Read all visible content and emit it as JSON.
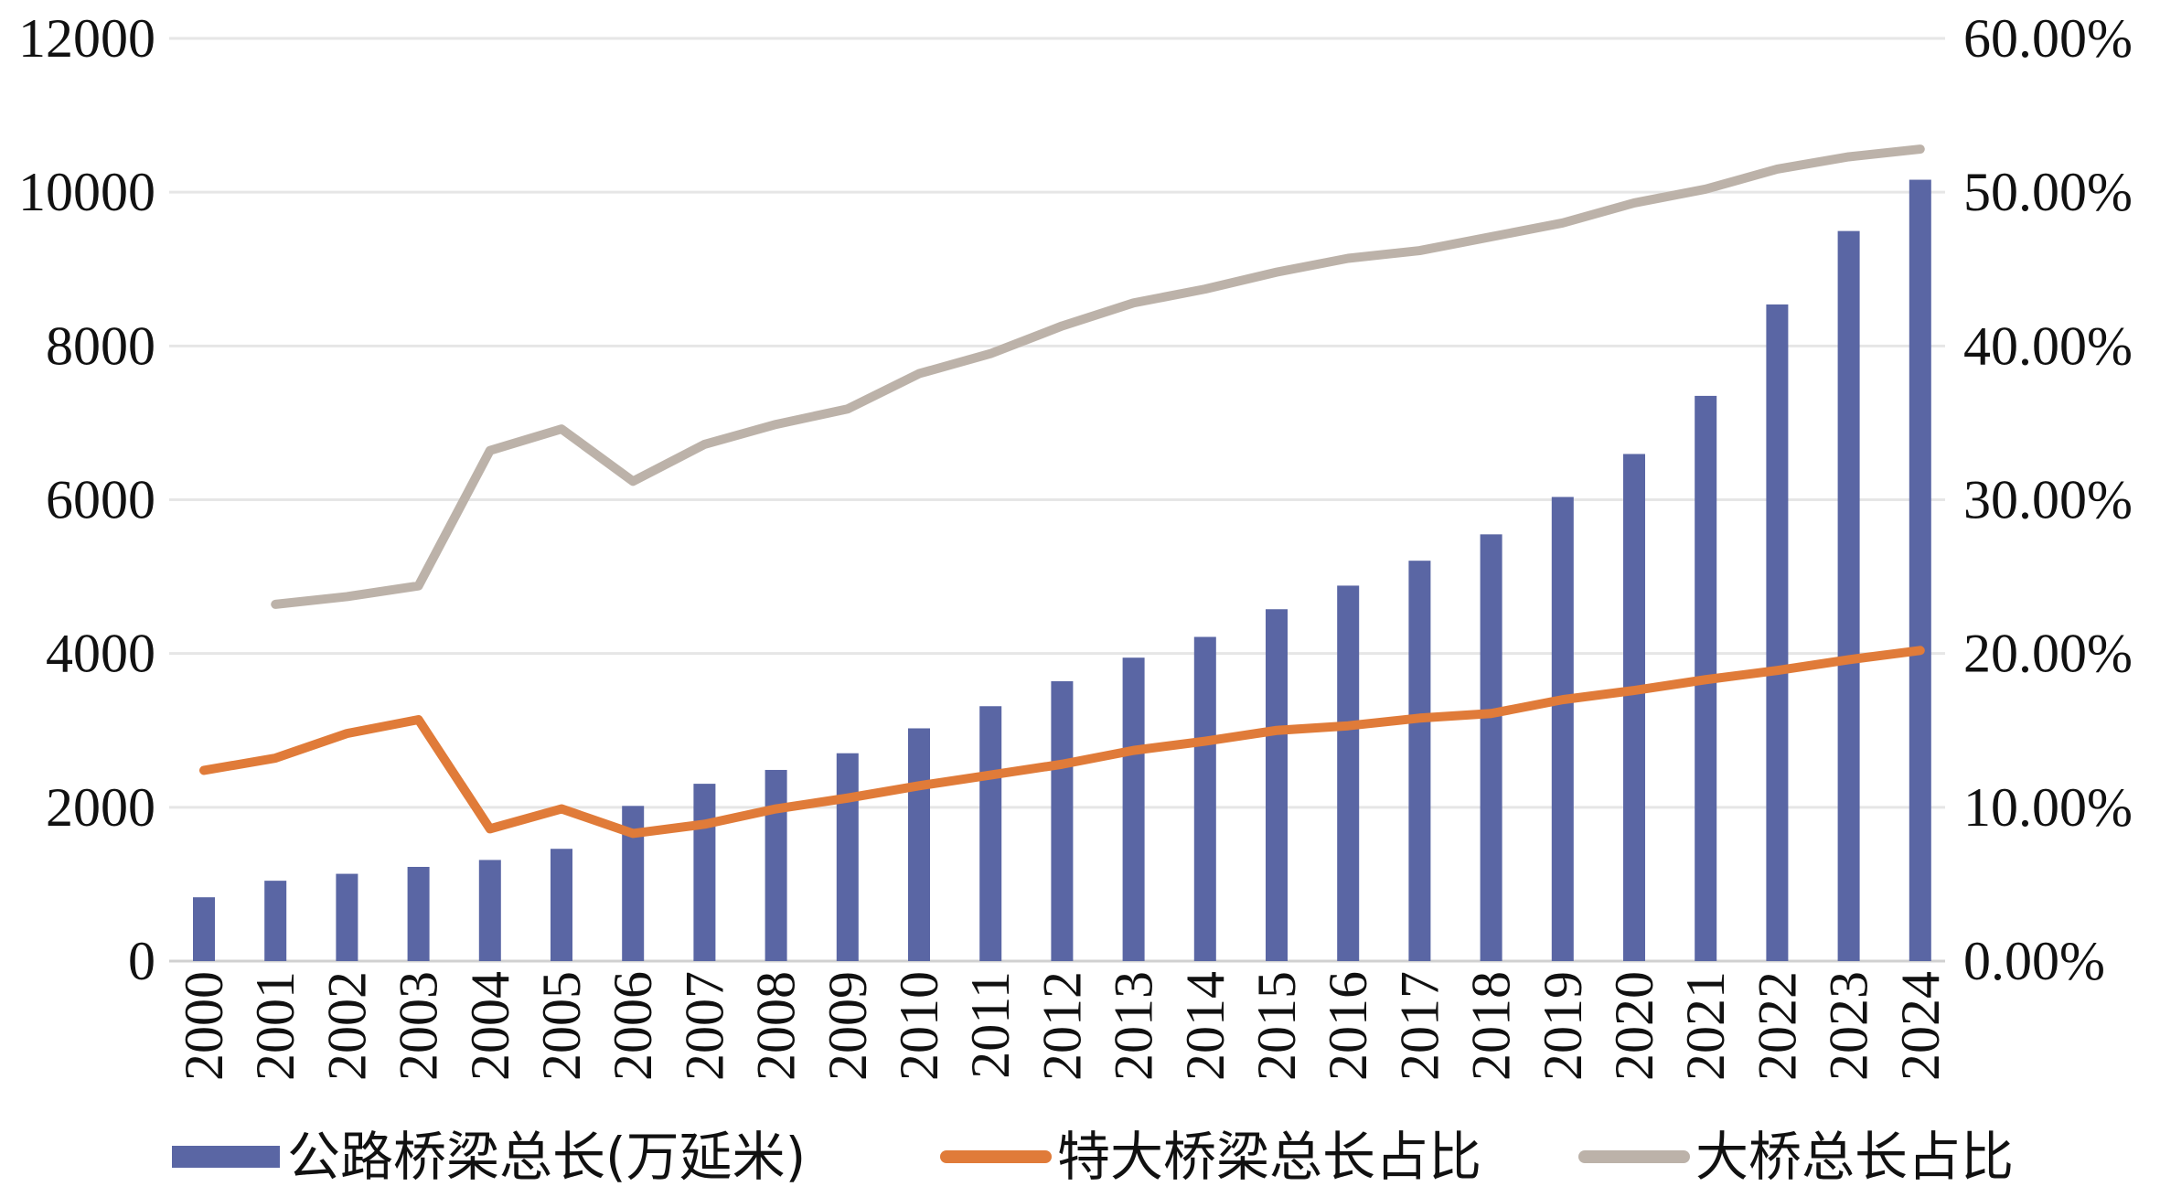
{
  "chart_data": {
    "type": "bar+line",
    "categories": [
      "2000",
      "2001",
      "2002",
      "2003",
      "2004",
      "2005",
      "2006",
      "2007",
      "2008",
      "2009",
      "2010",
      "2011",
      "2012",
      "2013",
      "2014",
      "2015",
      "2016",
      "2017",
      "2018",
      "2019",
      "2020",
      "2021",
      "2022",
      "2023",
      "2024"
    ],
    "y_left": {
      "range": [
        0,
        12000
      ],
      "ticks": [
        "0",
        "2000",
        "4000",
        "6000",
        "8000",
        "10000",
        "12000"
      ]
    },
    "y_right": {
      "range": [
        0,
        60
      ],
      "ticks": [
        "0.00%",
        "10.00%",
        "20.00%",
        "30.00%",
        "40.00%",
        "50.00%",
        "60.00%"
      ]
    },
    "grid": "horizontal",
    "legend_placement": "bottom",
    "series": [
      {
        "name": "公路桥梁总长(万延米)",
        "type": "bar",
        "axis": "left",
        "color": "#5a66a4",
        "values": [
          830,
          1045,
          1135,
          1225,
          1315,
          1460,
          2018,
          2306,
          2486,
          2703,
          3027,
          3315,
          3640,
          3946,
          4216,
          4576,
          4883,
          5207,
          5550,
          6036,
          6595,
          7351,
          8540,
          9495,
          10162
        ]
      },
      {
        "name": "特大桥梁总长占比",
        "type": "line",
        "axis": "right",
        "unit": "%",
        "color": "#e07b39",
        "values": [
          12.4,
          13.2,
          14.8,
          15.7,
          8.6,
          9.9,
          8.3,
          8.9,
          9.9,
          10.6,
          11.4,
          12.1,
          12.8,
          13.7,
          14.3,
          15.0,
          15.3,
          15.8,
          16.1,
          17.0,
          17.6,
          18.3,
          18.9,
          19.6,
          20.2
        ]
      },
      {
        "name": "大桥总长占比",
        "type": "line",
        "axis": "right",
        "unit": "%",
        "color": "#bcb2a9",
        "values": [
          null,
          23.2,
          23.7,
          24.4,
          33.2,
          34.6,
          31.2,
          33.6,
          34.9,
          35.9,
          38.2,
          39.5,
          41.3,
          42.8,
          43.7,
          44.8,
          45.7,
          46.2,
          47.1,
          48.0,
          49.3,
          50.2,
          51.5,
          52.3,
          52.8
        ]
      }
    ]
  }
}
